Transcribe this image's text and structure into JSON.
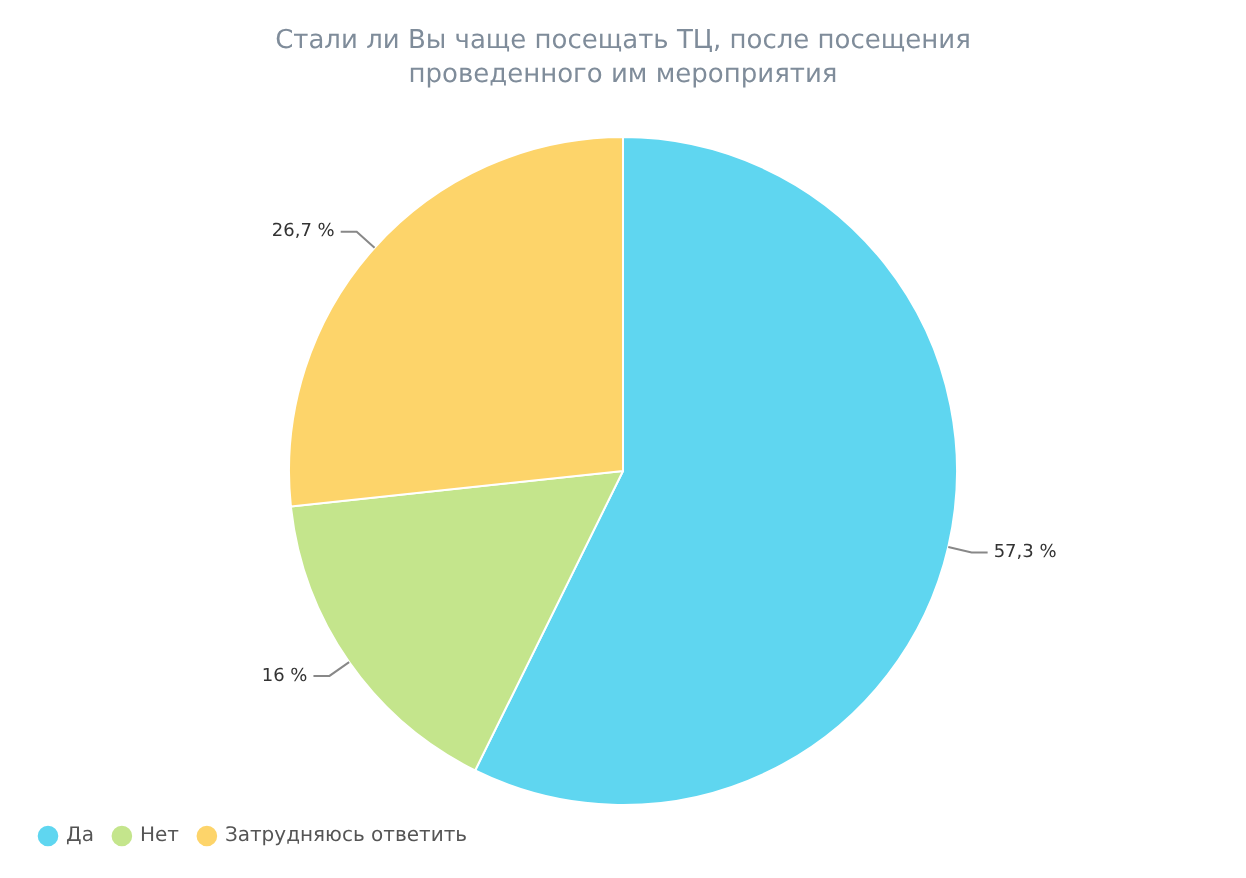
{
  "chart_data": {
    "type": "pie",
    "title": "Стали ли Вы чаще посещать ТЦ, после посещения проведенного им мероприятия",
    "categories": [
      "Да",
      "Нет",
      "Затрудняюсь ответить"
    ],
    "values": [
      57.3,
      16,
      26.7
    ],
    "colors": [
      "#5fd6f0",
      "#c4e58c",
      "#fdd46a"
    ],
    "value_labels": [
      "57,3 %",
      "16 %",
      "26,7 %"
    ],
    "legend": "bottom left"
  }
}
